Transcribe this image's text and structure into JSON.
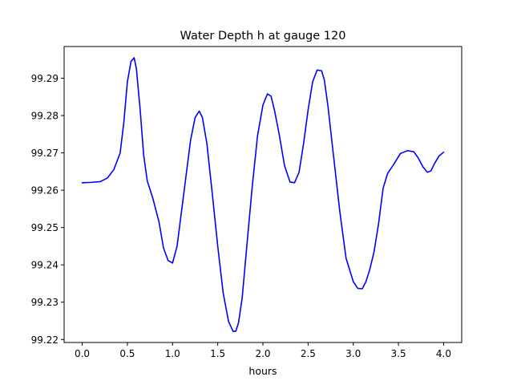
{
  "chart_data": {
    "type": "line",
    "title": "Water Depth h at gauge 120",
    "xlabel": "hours",
    "ylabel": "",
    "xlim": [
      -0.2,
      4.2
    ],
    "ylim": [
      99.2192,
      99.2985
    ],
    "x_ticks": [
      0.0,
      0.5,
      1.0,
      1.5,
      2.0,
      2.5,
      3.0,
      3.5,
      4.0
    ],
    "x_tick_labels": [
      "0.0",
      "0.5",
      "1.0",
      "1.5",
      "2.0",
      "2.5",
      "3.0",
      "3.5",
      "4.0"
    ],
    "y_ticks": [
      99.22,
      99.23,
      99.24,
      99.25,
      99.26,
      99.27,
      99.28,
      99.29
    ],
    "y_tick_labels": [
      "99.22",
      "99.23",
      "99.24",
      "99.25",
      "99.26",
      "99.27",
      "99.28",
      "99.29"
    ],
    "grid": false,
    "series": [
      {
        "color": "#0000ff",
        "x": [
          0.0,
          0.1,
          0.2,
          0.28,
          0.35,
          0.42,
          0.46,
          0.5,
          0.54,
          0.575,
          0.6,
          0.64,
          0.68,
          0.72,
          0.78,
          0.85,
          0.9,
          0.95,
          1.0,
          1.05,
          1.1,
          1.15,
          1.2,
          1.25,
          1.295,
          1.33,
          1.38,
          1.44,
          1.5,
          1.56,
          1.62,
          1.67,
          1.7,
          1.73,
          1.77,
          1.82,
          1.88,
          1.94,
          2.0,
          2.05,
          2.09,
          2.13,
          2.18,
          2.24,
          2.3,
          2.35,
          2.4,
          2.45,
          2.5,
          2.55,
          2.6,
          2.65,
          2.68,
          2.72,
          2.78,
          2.85,
          2.92,
          3.0,
          3.05,
          3.1,
          3.14,
          3.18,
          3.23,
          3.28,
          3.33,
          3.38,
          3.45,
          3.52,
          3.6,
          3.67,
          3.72,
          3.77,
          3.82,
          3.86,
          3.9,
          3.95,
          4.0
        ],
        "y": [
          99.262,
          99.2621,
          99.2623,
          99.2633,
          99.2655,
          99.27,
          99.278,
          99.289,
          99.2945,
          99.2955,
          99.2925,
          99.282,
          99.2695,
          99.2625,
          99.258,
          99.2515,
          99.2445,
          99.2412,
          99.2405,
          99.245,
          99.2545,
          99.264,
          99.2735,
          99.2795,
          99.2812,
          99.2795,
          99.2725,
          99.259,
          99.245,
          99.2325,
          99.2248,
          99.2222,
          99.2222,
          99.2245,
          99.231,
          99.2445,
          99.2605,
          99.2745,
          99.2828,
          99.2858,
          99.2852,
          99.2812,
          99.275,
          99.2665,
          99.2622,
          99.262,
          99.2648,
          99.2725,
          99.2815,
          99.289,
          99.2922,
          99.292,
          99.2895,
          99.2825,
          99.2695,
          99.2545,
          99.2418,
          99.2355,
          99.2337,
          99.2336,
          99.2355,
          99.2385,
          99.2435,
          99.251,
          99.2605,
          99.2645,
          99.267,
          99.2698,
          99.2706,
          99.2703,
          99.2686,
          99.2663,
          99.2648,
          99.2652,
          99.2672,
          99.2692,
          99.2702
        ]
      }
    ]
  }
}
